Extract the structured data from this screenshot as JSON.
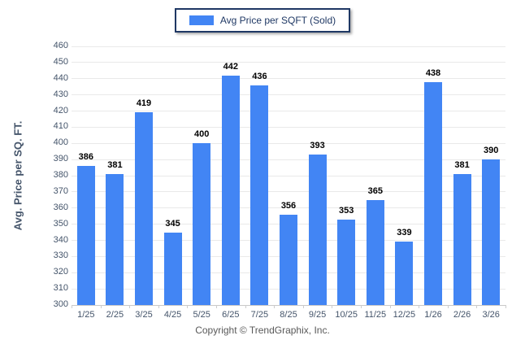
{
  "legend": {
    "label": "Avg Price per SQFT (Sold)"
  },
  "y_axis": {
    "title": "Avg. Price per SQ. FT."
  },
  "footer": {
    "copyright": "Copyright © TrendGraphix, Inc."
  },
  "colors": {
    "bar": "#4285f4",
    "legend_border": "#1f3864",
    "grid": "#e9e9e9",
    "axis_line": "#c9c9c9",
    "tick_text": "#44546a",
    "value_text": "#000000",
    "copyright_text": "#595959"
  },
  "chart_data": {
    "type": "bar",
    "title": "",
    "series_name": "Avg Price per SQFT (Sold)",
    "categories": [
      "1/25",
      "2/25",
      "3/25",
      "4/25",
      "5/25",
      "6/25",
      "7/25",
      "8/25",
      "9/25",
      "10/25",
      "11/25",
      "12/25",
      "1/26",
      "2/26",
      "3/26"
    ],
    "values": [
      386,
      381,
      419,
      345,
      400,
      442,
      436,
      356,
      393,
      353,
      365,
      339,
      438,
      381,
      390
    ],
    "xlabel": "",
    "ylabel": "Avg. Price per SQ. FT.",
    "ylim": [
      300,
      460
    ],
    "ytick_step": 10,
    "grid": true,
    "legend_position": "top-center",
    "bar_value_labels": true
  }
}
